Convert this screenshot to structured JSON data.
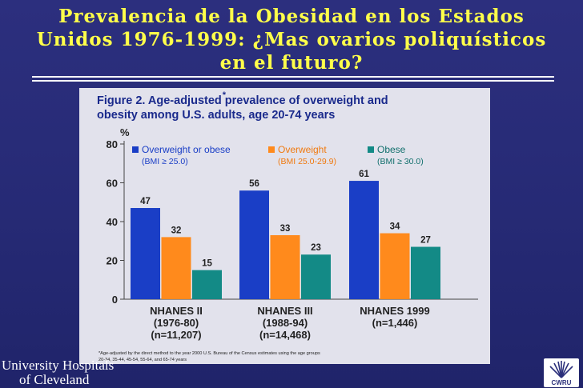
{
  "slide": {
    "title_lines": [
      "Prevalencia de la Obesidad en los Estados",
      "Unidos 1976-1999: ¿Mas ovarios poliquísticos",
      "en el futuro?"
    ]
  },
  "figure": {
    "title_lines": [
      "Figure 2. Age-adjusted prevalence of overweight and",
      "obesity among U.S. adults, age 20-74 years"
    ],
    "title_marker": "*",
    "footnote_lines": [
      "*Age-adjusted by the direct method to the year 2000 U.S. Bureau of the Census estimates using the age groups",
      "20-34, 35-44, 45-54, 55-64, and 65-74 years"
    ]
  },
  "chart_data": {
    "type": "bar",
    "title": "Figure 2. Age-adjusted prevalence of overweight and obesity among U.S. adults, age 20-74 years",
    "ylabel": "%",
    "xlabel": "",
    "ylim": [
      0,
      80
    ],
    "yticks": [
      0,
      20,
      40,
      60,
      80
    ],
    "grid": false,
    "legend_position": "top",
    "categories": [
      [
        "NHANES II",
        "(1976-80)",
        "(n=11,207)"
      ],
      [
        "NHANES III",
        "(1988-94)",
        "(n=14,468)"
      ],
      [
        "NHANES 1999",
        "(n=1,446)"
      ]
    ],
    "series": [
      {
        "name": "Overweight or obese",
        "legend_sub": "(BMI ≥ 25.0)",
        "color": "#1a3ec6",
        "values": [
          47,
          56,
          61
        ]
      },
      {
        "name": "Overweight",
        "legend_sub": "(BMI 25.0-29.9)",
        "color": "#ff8a1c",
        "values": [
          32,
          33,
          34
        ]
      },
      {
        "name": "Obese",
        "legend_sub": "(BMI ≥ 30.0)",
        "color": "#138a86",
        "values": [
          15,
          23,
          27
        ]
      }
    ]
  },
  "logos": {
    "left_line1": "University Hospitals",
    "left_line2": "of Cleveland",
    "right_text": "CWRU"
  },
  "colors": {
    "background": "#282c78",
    "title": "#ffff4a",
    "figure_background": "#e2e2ec",
    "figure_title": "#1a2a8c"
  }
}
